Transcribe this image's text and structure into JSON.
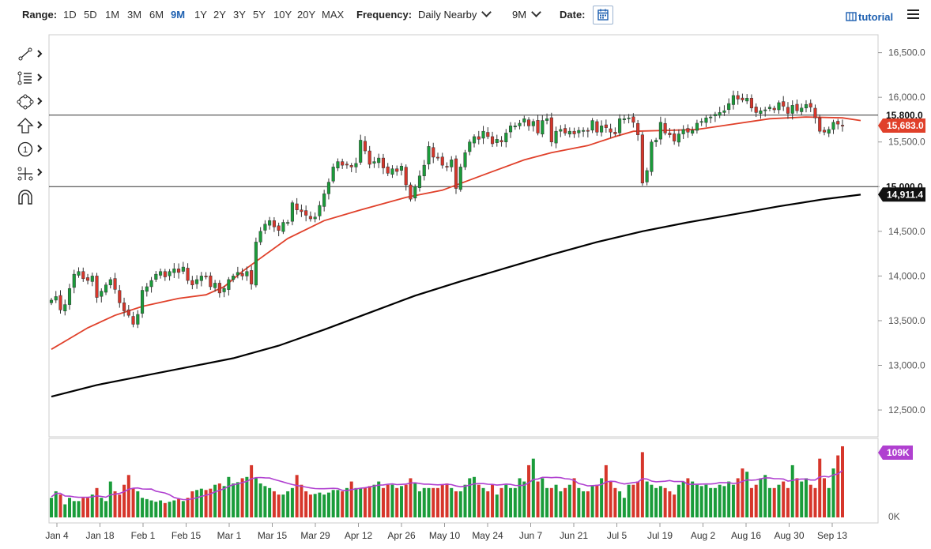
{
  "toolbar": {
    "range_label": "Range:",
    "ranges": [
      "1D",
      "5D",
      "1M",
      "3M",
      "6M",
      "9M",
      "1Y",
      "2Y",
      "3Y",
      "5Y",
      "10Y",
      "20Y",
      "MAX"
    ],
    "active_range": "9M",
    "frequency_label": "Frequency:",
    "frequency_value": "Daily Nearby",
    "period_value": "9M",
    "date_label": "Date:",
    "tutorial_label": "tutorial"
  },
  "tools": [
    "trendline-icon",
    "fibonacci-icon",
    "shapes-icon",
    "arrow-up-icon",
    "annotation-icon",
    "measure-icon",
    "magnet-icon"
  ],
  "colors": {
    "up_candle": "#1a9c3a",
    "down_candle": "#d6362b",
    "ma_fast": "#e0402a",
    "ma_slow": "#000000",
    "volume_avg": "#b040d0",
    "price_badge": "#e0402a",
    "volume_badge": "#b040d0"
  },
  "chart_data": {
    "type": "candlestick",
    "y_axis": {
      "ticks": [
        "16,500.0",
        "16,000.0",
        "15,500.0",
        "15,000.0",
        "14,500.0",
        "14,000.0",
        "13,500.0",
        "13,000.0",
        "12,500.0"
      ],
      "range": [
        12200,
        16700
      ]
    },
    "x_axis": {
      "ticks": [
        "Jan 4",
        "Jan 18",
        "Feb 1",
        "Feb 15",
        "Mar 1",
        "Mar 15",
        "Mar 29",
        "Apr 12",
        "Apr 26",
        "May 10",
        "May 24",
        "Jun 7",
        "Jun 21",
        "Jul 5",
        "Jul 19",
        "Aug 2",
        "Aug 16",
        "Aug 30",
        "Sep 13"
      ]
    },
    "horizontal_lines": [
      {
        "label": "15,800.0",
        "value": 15800
      },
      {
        "label": "15,000.0",
        "value": 15000
      }
    ],
    "last_price_label": "15,683.0",
    "last_price": 15683,
    "slow_ma_label": "14,911.4",
    "slow_ma_last": 14911.4,
    "volume_axis_zero": "0K",
    "volume_last_label": "109K",
    "series": [
      {
        "name": "close",
        "values": [
          13730,
          13770,
          13620,
          13680,
          13860,
          14020,
          14050,
          13970,
          13950,
          14000,
          13760,
          13830,
          13900,
          13960,
          13850,
          13700,
          13610,
          13560,
          13460,
          13570,
          13840,
          13880,
          13950,
          14020,
          14050,
          13990,
          14050,
          14080,
          14040,
          14100,
          13950,
          13900,
          13960,
          14000,
          13990,
          13880,
          13920,
          13810,
          13860,
          13960,
          14000,
          14040,
          14000,
          14050,
          13910,
          14380,
          14500,
          14580,
          14620,
          14550,
          14510,
          14600,
          14600,
          14820,
          14740,
          14720,
          14680,
          14640,
          14660,
          14790,
          14920,
          15050,
          15220,
          15280,
          15240,
          15250,
          15220,
          15260,
          15520,
          15400,
          15250,
          15280,
          15320,
          15210,
          15150,
          15200,
          15170,
          15230,
          15020,
          14860,
          15000,
          15120,
          15240,
          15450,
          15330,
          15320,
          15240,
          15220,
          15300,
          14980,
          15220,
          15380,
          15500,
          15560,
          15530,
          15620,
          15560,
          15480,
          15530,
          15500,
          15600,
          15680,
          15680,
          15710,
          15760,
          15680,
          15730,
          15600,
          15740,
          15760,
          15500,
          15620,
          15640,
          15600,
          15620,
          15590,
          15630,
          15630,
          15620,
          15740,
          15610,
          15680,
          15660,
          15610,
          15590,
          15760,
          15760,
          15770,
          15720,
          15580,
          15040,
          15180,
          15500,
          15520,
          15720,
          15600,
          15580,
          15510,
          15590,
          15640,
          15610,
          15630,
          15710,
          15730,
          15770,
          15780,
          15810,
          15830,
          15850,
          15930,
          16020,
          15980,
          15970,
          15990,
          15880,
          15830,
          15850,
          15860,
          15890,
          15860,
          15940,
          15900,
          15820,
          15910,
          15850,
          15880,
          15920,
          15890,
          15770,
          15620,
          15610,
          15640,
          15720,
          15700,
          15683
        ]
      },
      {
        "name": "volume",
        "values": [
          30,
          40,
          35,
          20,
          30,
          25,
          25,
          30,
          30,
          35,
          45,
          30,
          25,
          55,
          40,
          35,
          50,
          65,
          45,
          40,
          30,
          28,
          26,
          24,
          26,
          22,
          24,
          26,
          28,
          25,
          30,
          40,
          42,
          44,
          42,
          44,
          50,
          52,
          48,
          62,
          52,
          54,
          60,
          62,
          80,
          60,
          52,
          48,
          45,
          40,
          35,
          35,
          40,
          45,
          65,
          50,
          40,
          35,
          36,
          38,
          35,
          38,
          42,
          42,
          40,
          45,
          55,
          45,
          45,
          46,
          48,
          50,
          55,
          45,
          50,
          50,
          45,
          48,
          50,
          60,
          52,
          40,
          45,
          45,
          45,
          45,
          50,
          52,
          45,
          40,
          40,
          50,
          60,
          62,
          50,
          45,
          40,
          50,
          35,
          45,
          50,
          45,
          45,
          60,
          55,
          80,
          90,
          55,
          60,
          45,
          45,
          50,
          40,
          45,
          50,
          60,
          45,
          40,
          40,
          48,
          50,
          60,
          80,
          55,
          45,
          40,
          30,
          50,
          50,
          55,
          100,
          55,
          50,
          45,
          48,
          45,
          40,
          35,
          50,
          55,
          60,
          55,
          50,
          48,
          50,
          45,
          45,
          50,
          48,
          55,
          50,
          60,
          75,
          70,
          45,
          50,
          60,
          65,
          45,
          45,
          50,
          55,
          45,
          80,
          60,
          55,
          60,
          50,
          45,
          90,
          60,
          45,
          75,
          95,
          109
        ]
      }
    ],
    "ma_fast_points": [
      [
        0,
        13180
      ],
      [
        3,
        13270
      ],
      [
        8,
        13420
      ],
      [
        14,
        13560
      ],
      [
        20,
        13660
      ],
      [
        28,
        13750
      ],
      [
        34,
        13790
      ],
      [
        38,
        13880
      ],
      [
        42,
        14050
      ],
      [
        46,
        14200
      ],
      [
        52,
        14420
      ],
      [
        60,
        14620
      ],
      [
        68,
        14740
      ],
      [
        78,
        14880
      ],
      [
        86,
        14960
      ],
      [
        96,
        15150
      ],
      [
        104,
        15300
      ],
      [
        110,
        15380
      ],
      [
        118,
        15460
      ],
      [
        124,
        15560
      ],
      [
        128,
        15620
      ],
      [
        136,
        15630
      ],
      [
        142,
        15640
      ],
      [
        150,
        15700
      ],
      [
        158,
        15760
      ],
      [
        166,
        15780
      ],
      [
        174,
        15770
      ],
      [
        178,
        15740
      ]
    ],
    "ma_slow_points": [
      [
        0,
        12650
      ],
      [
        10,
        12780
      ],
      [
        20,
        12880
      ],
      [
        30,
        12980
      ],
      [
        40,
        13080
      ],
      [
        50,
        13220
      ],
      [
        60,
        13400
      ],
      [
        70,
        13590
      ],
      [
        80,
        13780
      ],
      [
        90,
        13940
      ],
      [
        100,
        14090
      ],
      [
        110,
        14240
      ],
      [
        120,
        14380
      ],
      [
        130,
        14500
      ],
      [
        140,
        14600
      ],
      [
        150,
        14690
      ],
      [
        160,
        14780
      ],
      [
        170,
        14860
      ],
      [
        178,
        14911
      ]
    ]
  }
}
